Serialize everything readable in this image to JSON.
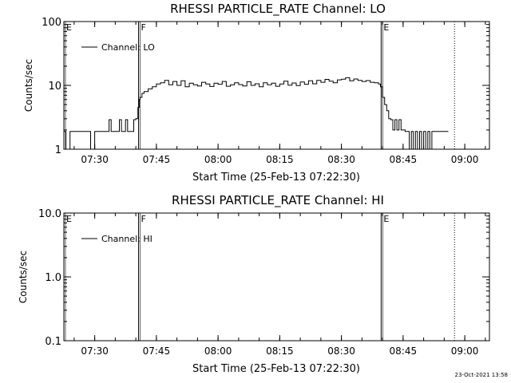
{
  "stamp": "23-Oct-2021 13:58",
  "chart_data": [
    {
      "type": "line",
      "title": "RHESSI PARTICLE_RATE Channel: LO",
      "xlabel": "Start Time (25-Feb-13 07:22:30)",
      "ylabel": "Counts/sec",
      "yscale": "log",
      "xlim": [
        "07:22:30",
        "09:06:00"
      ],
      "ylim": [
        1,
        100
      ],
      "x_ticks": [
        "07:30",
        "07:45",
        "08:00",
        "08:15",
        "08:30",
        "08:45",
        "09:00"
      ],
      "y_ticks": [
        "1",
        "10",
        "100"
      ],
      "legend": "upper-left",
      "series": [
        {
          "name": "Channel: LO",
          "x": [
            "07:22:30",
            "07:23:00",
            "07:24:00",
            "07:25:00",
            "07:26:00",
            "07:27:00",
            "07:28:00",
            "07:29:00",
            "07:30:00",
            "07:31:00",
            "07:32:00",
            "07:33:00",
            "07:33:30",
            "07:34:00",
            "07:34:30",
            "07:35:00",
            "07:35:30",
            "07:36:00",
            "07:36:30",
            "07:37:00",
            "07:37:30",
            "07:38:00",
            "07:38:30",
            "07:39:00",
            "07:39:30",
            "07:40:00",
            "07:40:30",
            "07:40:50",
            "07:41:00",
            "07:41:30",
            "07:42:00",
            "07:43:00",
            "07:44:00",
            "07:45:00",
            "07:46:00",
            "07:47:00",
            "07:48:00",
            "07:49:00",
            "07:50:00",
            "07:51:00",
            "07:52:00",
            "07:53:00",
            "07:54:00",
            "07:55:00",
            "07:56:00",
            "07:57:00",
            "07:58:00",
            "07:59:00",
            "08:00:00",
            "08:01:00",
            "08:02:00",
            "08:03:00",
            "08:04:00",
            "08:05:00",
            "08:06:00",
            "08:07:00",
            "08:08:00",
            "08:09:00",
            "08:10:00",
            "08:11:00",
            "08:12:00",
            "08:13:00",
            "08:14:00",
            "08:15:00",
            "08:16:00",
            "08:17:00",
            "08:18:00",
            "08:19:00",
            "08:20:00",
            "08:21:00",
            "08:22:00",
            "08:23:00",
            "08:24:00",
            "08:25:00",
            "08:26:00",
            "08:27:00",
            "08:28:00",
            "08:29:00",
            "08:30:00",
            "08:31:00",
            "08:32:00",
            "08:33:00",
            "08:34:00",
            "08:35:00",
            "08:36:00",
            "08:37:00",
            "08:38:00",
            "08:39:00",
            "08:39:30",
            "08:40:00",
            "08:40:30",
            "08:41:00",
            "08:41:30",
            "08:42:00",
            "08:42:30",
            "08:43:00",
            "08:43:30",
            "08:44:00",
            "08:44:30",
            "08:45:00",
            "08:45:30",
            "08:46:00",
            "08:46:30",
            "08:47:00",
            "08:47:30",
            "08:48:00",
            "08:48:30",
            "08:49:00",
            "08:49:30",
            "08:50:00",
            "08:50:30",
            "08:51:00",
            "08:51:30",
            "08:52:00",
            "08:52:30",
            "08:53:00",
            "08:54:00",
            "08:55:00",
            "08:56:00"
          ],
          "y": [
            1.9,
            1.0,
            1.9,
            1.9,
            1.9,
            1.9,
            1.9,
            1.0,
            1.9,
            1.9,
            1.9,
            1.9,
            2.9,
            1.9,
            1.9,
            1.9,
            1.9,
            2.9,
            1.9,
            1.9,
            2.9,
            1.9,
            1.9,
            1.9,
            2.9,
            3.0,
            4.5,
            6.0,
            6.5,
            7.5,
            8.0,
            8.8,
            9.5,
            10.5,
            11.0,
            12.0,
            10.2,
            11.5,
            10.0,
            11.8,
            9.5,
            10.8,
            10.2,
            9.8,
            11.2,
            10.5,
            9.6,
            10.8,
            10.4,
            11.5,
            9.7,
            10.2,
            11.0,
            10.3,
            9.8,
            11.4,
            10.0,
            10.6,
            9.5,
            11.0,
            10.2,
            10.8,
            9.7,
            10.5,
            11.6,
            10.1,
            10.9,
            9.9,
            11.3,
            10.4,
            11.8,
            10.6,
            12.0,
            11.2,
            12.4,
            11.6,
            11.0,
            12.2,
            12.5,
            13.2,
            11.8,
            12.6,
            12.0,
            11.5,
            11.9,
            11.2,
            11.0,
            10.5,
            9.5,
            6.5,
            5.0,
            4.0,
            3.0,
            2.9,
            2.0,
            2.9,
            2.0,
            2.9,
            2.0,
            2.0,
            1.9,
            1.9,
            1.0,
            1.9,
            1.0,
            1.9,
            1.0,
            1.9,
            1.0,
            1.9,
            1.0,
            1.9,
            1.0,
            1.9,
            1.9,
            1.9,
            1.9,
            1.9,
            1.9
          ]
        }
      ],
      "annotations": {
        "markers": [
          {
            "label": "E",
            "x": "07:22:30",
            "style": "solid"
          },
          {
            "label": "F",
            "x": "07:40:40",
            "style": "solid"
          },
          {
            "label": "E",
            "x": "08:39:40",
            "style": "solid"
          },
          {
            "label": "",
            "x": "08:57:30",
            "style": "dotted"
          }
        ]
      }
    },
    {
      "type": "line",
      "title": "RHESSI PARTICLE_RATE Channel: HI",
      "xlabel": "Start Time (25-Feb-13 07:22:30)",
      "ylabel": "Counts/sec",
      "yscale": "log",
      "xlim": [
        "07:22:30",
        "09:06:00"
      ],
      "ylim": [
        0.1,
        10
      ],
      "x_ticks": [
        "07:30",
        "07:45",
        "08:00",
        "08:15",
        "08:30",
        "08:45",
        "09:00"
      ],
      "y_ticks": [
        "0.1",
        "1.0",
        "10.0"
      ],
      "legend": "upper-left",
      "series": [
        {
          "name": "Channel: HI",
          "x": [],
          "y": []
        }
      ],
      "annotations": {
        "markers": [
          {
            "label": "E",
            "x": "07:22:30",
            "style": "solid"
          },
          {
            "label": "F",
            "x": "07:40:40",
            "style": "solid"
          },
          {
            "label": "E",
            "x": "08:39:40",
            "style": "solid"
          },
          {
            "label": "",
            "x": "08:57:30",
            "style": "dotted"
          }
        ]
      }
    }
  ]
}
